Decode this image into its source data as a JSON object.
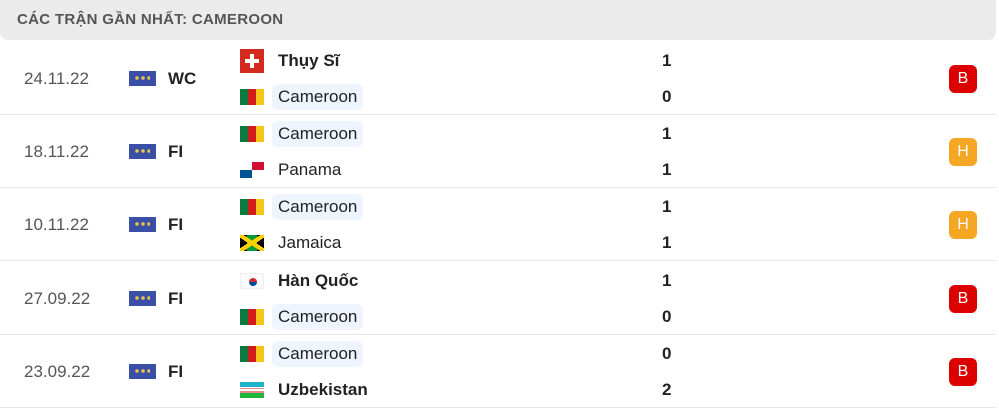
{
  "header": {
    "title": "CÁC TRẬN GẦN NHẤT: CAMEROON"
  },
  "colors": {
    "loss": "#dd0000",
    "draw": "#f5a623"
  },
  "matches": [
    {
      "date": "24.11.22",
      "competition": "WC",
      "home": {
        "name": "Thụy Sĩ",
        "flag": "switzerland",
        "score": "1"
      },
      "away": {
        "name": "Cameroon",
        "flag": "cameroon",
        "score": "0"
      },
      "result": "B"
    },
    {
      "date": "18.11.22",
      "competition": "FI",
      "home": {
        "name": "Cameroon",
        "flag": "cameroon",
        "score": "1"
      },
      "away": {
        "name": "Panama",
        "flag": "panama",
        "score": "1"
      },
      "result": "H"
    },
    {
      "date": "10.11.22",
      "competition": "FI",
      "home": {
        "name": "Cameroon",
        "flag": "cameroon",
        "score": "1"
      },
      "away": {
        "name": "Jamaica",
        "flag": "jamaica",
        "score": "1"
      },
      "result": "H"
    },
    {
      "date": "27.09.22",
      "competition": "FI",
      "home": {
        "name": "Hàn Quốc",
        "flag": "south-korea",
        "score": "1"
      },
      "away": {
        "name": "Cameroon",
        "flag": "cameroon",
        "score": "0"
      },
      "result": "B"
    },
    {
      "date": "23.09.22",
      "competition": "FI",
      "home": {
        "name": "Cameroon",
        "flag": "cameroon",
        "score": "0"
      },
      "away": {
        "name": "Uzbekistan",
        "flag": "uzbekistan",
        "score": "2"
      },
      "result": "B"
    }
  ]
}
